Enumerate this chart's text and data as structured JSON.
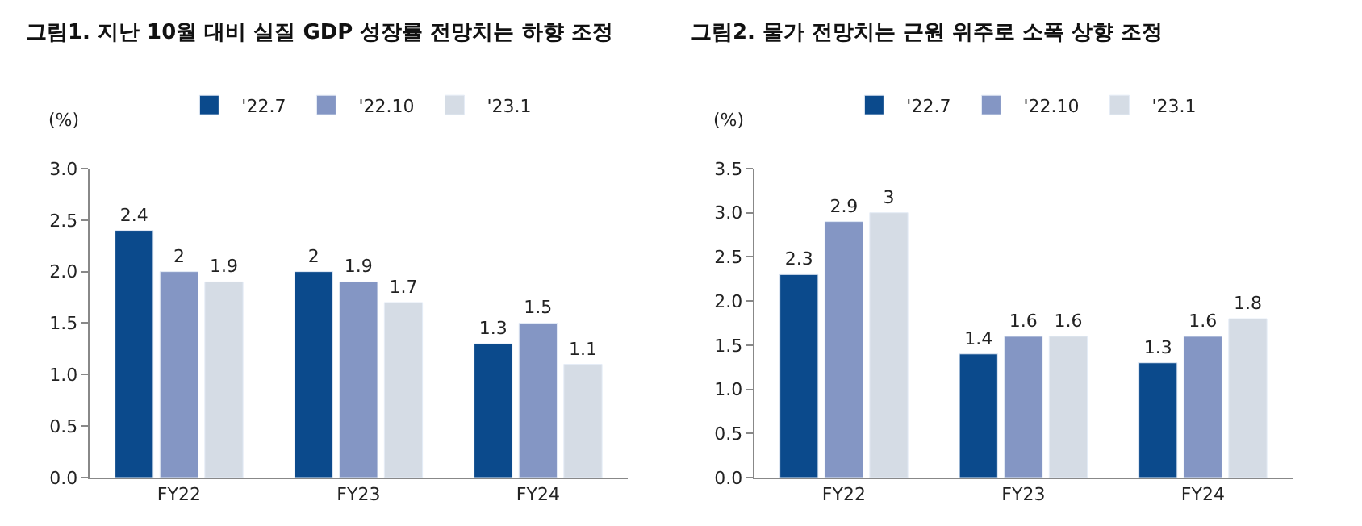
{
  "chart_data": [
    {
      "type": "bar",
      "title": "그림1. 지난 10월 대비 실질 GDP 성장률 전망치는 하향 조정",
      "ylabel": "(%)",
      "categories": [
        "FY22",
        "FY23",
        "FY24"
      ],
      "series": [
        {
          "name": "'22.7",
          "color": "#0b4a8c",
          "values": [
            2.4,
            2.0,
            1.3
          ]
        },
        {
          "name": "'22.10",
          "color": "#8496c4",
          "values": [
            2.0,
            1.9,
            1.5
          ]
        },
        {
          "name": "'23.1",
          "color": "#d5dce5",
          "values": [
            1.9,
            1.7,
            1.1
          ]
        }
      ],
      "ylim": [
        0,
        3.0
      ],
      "yticks": [
        {
          "value": 0,
          "label": "0.0"
        },
        {
          "value": 0.5,
          "label": "0.5"
        },
        {
          "value": 1,
          "label": "1.0"
        },
        {
          "value": 1.5,
          "label": "1.5"
        },
        {
          "value": 2,
          "label": "2.0"
        },
        {
          "value": 2.5,
          "label": "2.5"
        },
        {
          "value": 3,
          "label": "3.0"
        }
      ],
      "data_labels": true,
      "legend": "top"
    },
    {
      "type": "bar",
      "title": "그림2. 물가 전망치는 근원 위주로 소폭 상향 조정",
      "ylabel": "(%)",
      "categories": [
        "FY22",
        "FY23",
        "FY24"
      ],
      "series": [
        {
          "name": "'22.7",
          "color": "#0b4a8c",
          "values": [
            2.3,
            1.4,
            1.3
          ]
        },
        {
          "name": "'22.10",
          "color": "#8496c4",
          "values": [
            2.9,
            1.6,
            1.6
          ]
        },
        {
          "name": "'23.1",
          "color": "#d5dce5",
          "values": [
            3.0,
            1.6,
            1.8
          ]
        }
      ],
      "ylim": [
        0,
        3.5
      ],
      "yticks": [
        {
          "value": 0,
          "label": "0.0"
        },
        {
          "value": 0.5,
          "label": "0.5"
        },
        {
          "value": 1,
          "label": "1.0"
        },
        {
          "value": 1.5,
          "label": "1.5"
        },
        {
          "value": 2,
          "label": "2.0"
        },
        {
          "value": 2.5,
          "label": "2.5"
        },
        {
          "value": 3,
          "label": "3.0"
        },
        {
          "value": 3.5,
          "label": "3.5"
        }
      ],
      "data_labels": true,
      "legend": "top"
    }
  ]
}
